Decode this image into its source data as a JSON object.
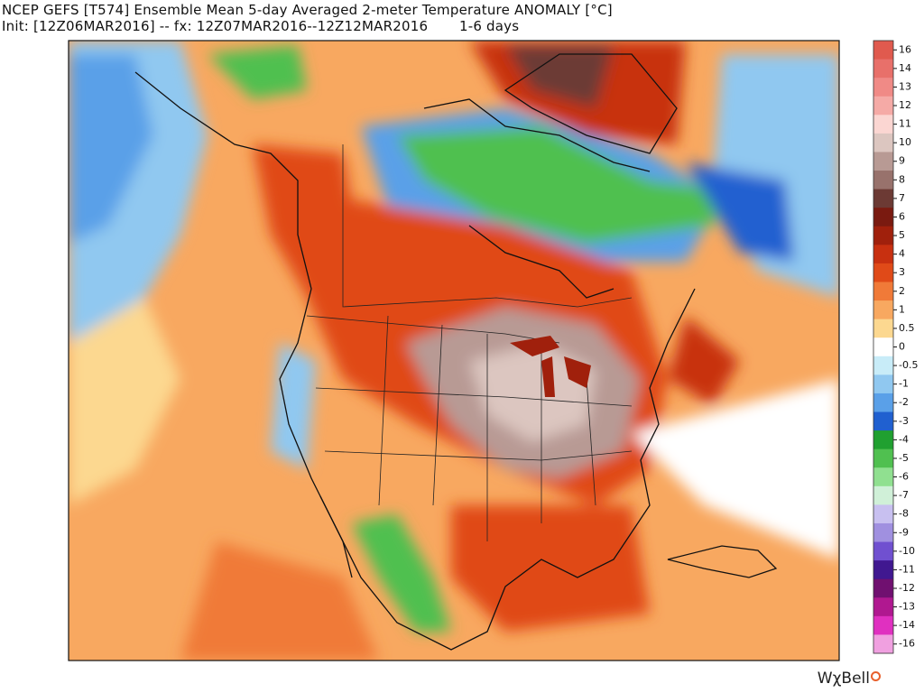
{
  "header": {
    "title": "NCEP GEFS [T574] Ensemble Mean 5-day Averaged 2-meter Temperature ANOMALY [°C]",
    "subtitle": "Init: [12Z06MAR2016] -- fx: 12Z07MAR2016--12Z12MAR2016       1-6 days"
  },
  "legend": {
    "items": [
      {
        "label": "16",
        "color": "#e05a4e"
      },
      {
        "label": "14",
        "color": "#e8706a"
      },
      {
        "label": "13",
        "color": "#f08a86"
      },
      {
        "label": "12",
        "color": "#f5aaa6"
      },
      {
        "label": "11",
        "color": "#fbd6d2"
      },
      {
        "label": "10",
        "color": "#dcc6c0"
      },
      {
        "label": "9",
        "color": "#b89a94"
      },
      {
        "label": "8",
        "color": "#98726c"
      },
      {
        "label": "7",
        "color": "#6c3a34"
      },
      {
        "label": "6",
        "color": "#7a1a10"
      },
      {
        "label": "5",
        "color": "#a0200c"
      },
      {
        "label": "4",
        "color": "#c83010"
      },
      {
        "label": "3",
        "color": "#e04a18"
      },
      {
        "label": "2",
        "color": "#f07a38"
      },
      {
        "label": "1",
        "color": "#f8a860"
      },
      {
        "label": "0.5",
        "color": "#fcd890"
      },
      {
        "label": "0",
        "color": "#ffffff"
      },
      {
        "label": "-0.5",
        "color": "#c8ecf8"
      },
      {
        "label": "-1",
        "color": "#90c8f0"
      },
      {
        "label": "-2",
        "color": "#5aa0e8"
      },
      {
        "label": "-3",
        "color": "#2060d0"
      },
      {
        "label": "-4",
        "color": "#20a030"
      },
      {
        "label": "-5",
        "color": "#50c050"
      },
      {
        "label": "-6",
        "color": "#90e090"
      },
      {
        "label": "-7",
        "color": "#d0f0d8"
      },
      {
        "label": "-8",
        "color": "#c8c0f0"
      },
      {
        "label": "-9",
        "color": "#a090e0"
      },
      {
        "label": "-10",
        "color": "#7050d0"
      },
      {
        "label": "-11",
        "color": "#401890"
      },
      {
        "label": "-12",
        "color": "#701070"
      },
      {
        "label": "-13",
        "color": "#b01890"
      },
      {
        "label": "-14",
        "color": "#e030c0"
      },
      {
        "label": "-16",
        "color": "#f0a0e0"
      }
    ]
  },
  "footer": {
    "brand": "WχBell"
  }
}
